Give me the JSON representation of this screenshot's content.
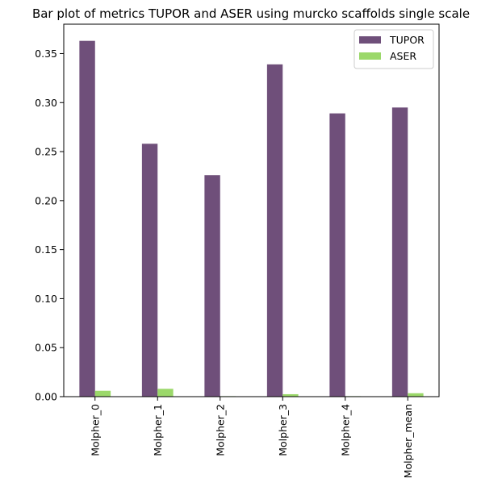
{
  "chart_data": {
    "type": "bar",
    "title": "Bar plot of metrics TUPOR and ASER using murcko scaffolds single scale",
    "xlabel": "",
    "ylabel": "",
    "categories": [
      "Molpher_0",
      "Molpher_1",
      "Molpher_2",
      "Molpher_3",
      "Molpher_4",
      "Molpher_mean"
    ],
    "series": [
      {
        "name": "TUPOR",
        "color": "#6f4f7a",
        "values": [
          0.363,
          0.258,
          0.226,
          0.339,
          0.289,
          0.295
        ]
      },
      {
        "name": "ASER",
        "color": "#9bd86a",
        "values": [
          0.006,
          0.008,
          0.0005,
          0.0025,
          0.0005,
          0.0035
        ]
      }
    ],
    "ylim": [
      0,
      0.38
    ],
    "yticks": [
      0.0,
      0.05,
      0.1,
      0.15,
      0.2,
      0.25,
      0.3,
      0.35
    ],
    "ytick_labels": [
      "0.00",
      "0.05",
      "0.10",
      "0.15",
      "0.20",
      "0.25",
      "0.30",
      "0.35"
    ],
    "grid": false,
    "legend_position": "top-right"
  }
}
